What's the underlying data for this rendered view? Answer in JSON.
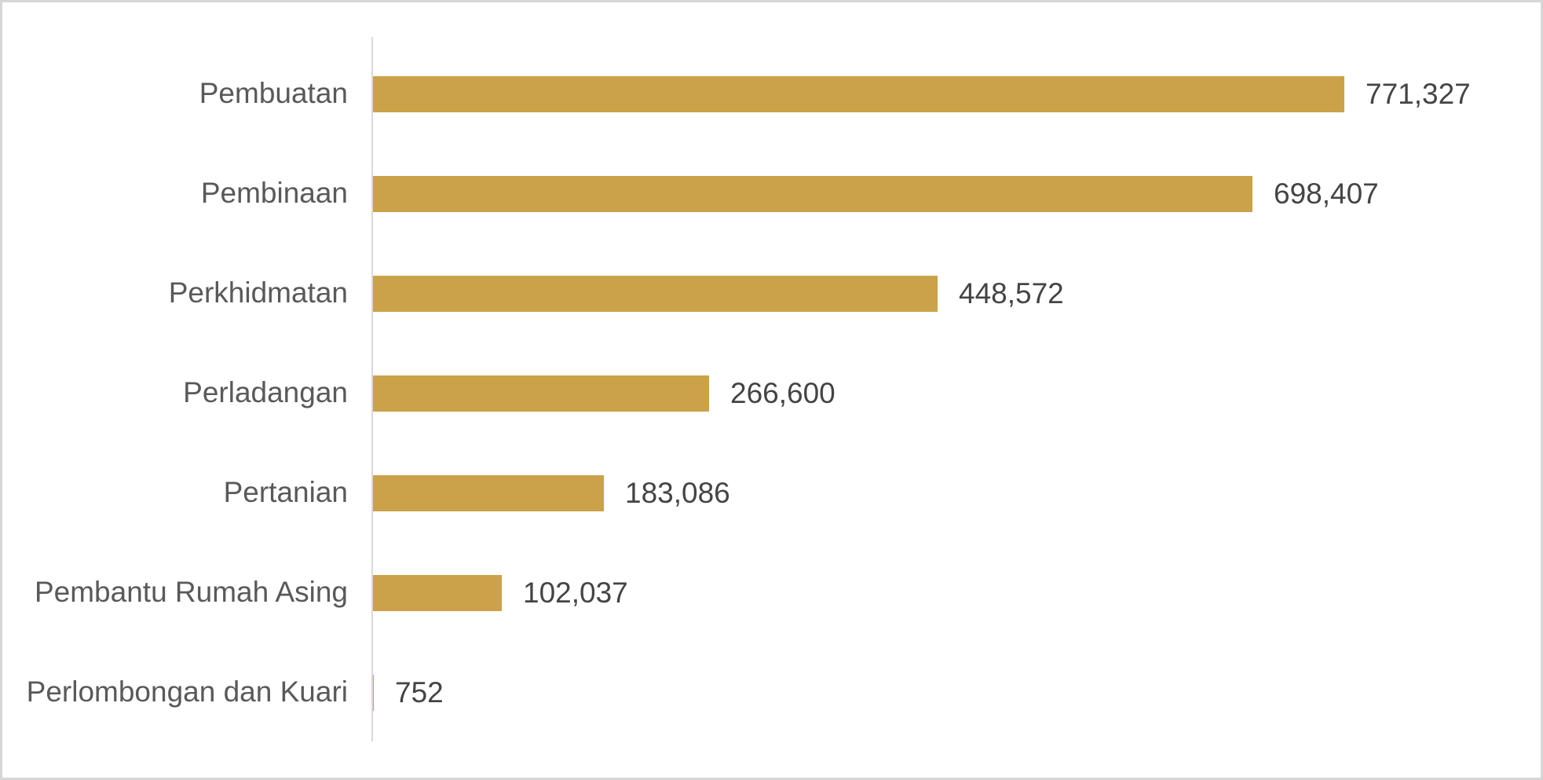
{
  "chart_data": {
    "type": "bar",
    "orientation": "horizontal",
    "title": "",
    "xlabel": "",
    "ylabel": "",
    "legend": null,
    "gridlines": false,
    "xlim": [
      0,
      800000
    ],
    "categories": [
      "Pembuatan",
      "Pembinaan",
      "Perkhidmatan",
      "Perladangan",
      "Pertanian",
      "Pembantu Rumah Asing",
      "Perlombongan dan Kuari"
    ],
    "values": [
      771327,
      698407,
      448572,
      266600,
      183086,
      102037,
      752
    ],
    "value_labels": [
      "771,327",
      "698,407",
      "448,572",
      "266,600",
      "183,086",
      "102,037",
      "752"
    ],
    "colors": {
      "bar": "#CBA24A",
      "axis_line": "#D9D9D9",
      "category_text": "#595959",
      "value_text": "#444444",
      "frame_border": "#D6D6D6",
      "background": "#FFFFFF"
    }
  }
}
